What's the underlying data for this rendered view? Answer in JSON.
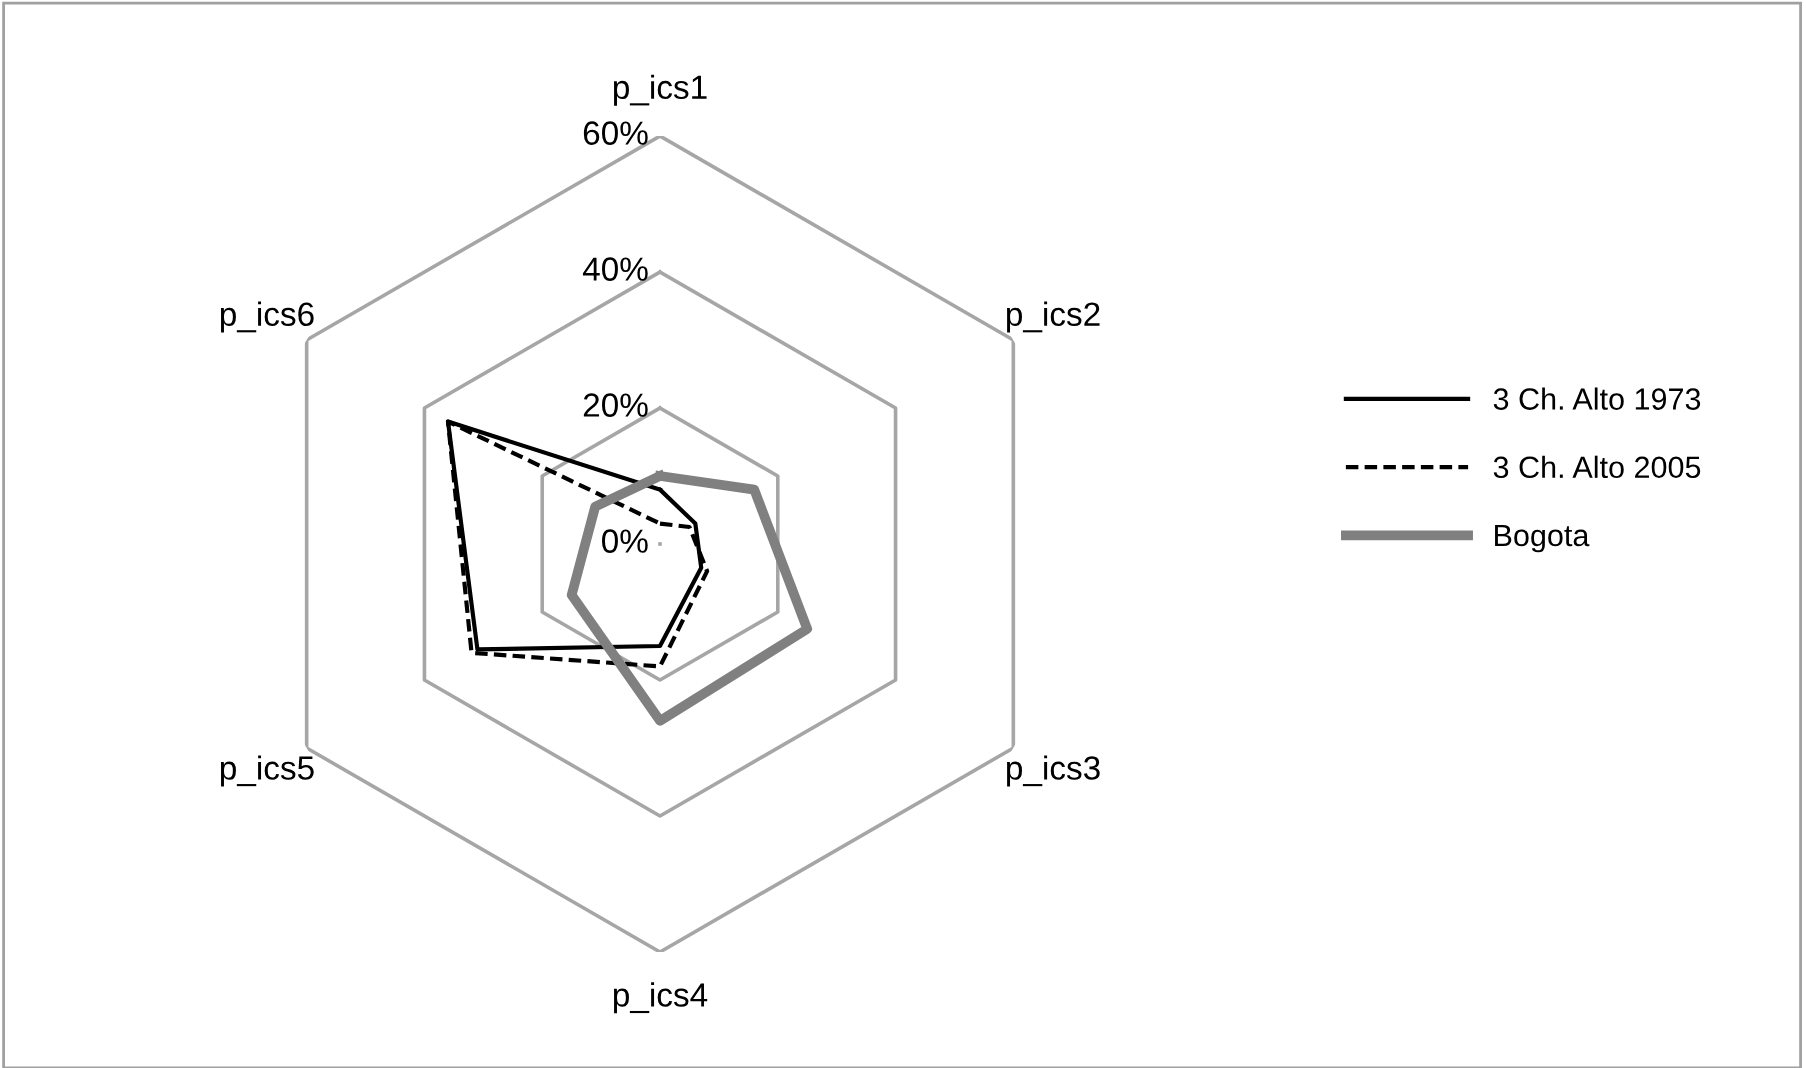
{
  "chart_data": {
    "type": "radar",
    "categories": [
      "p_ics1",
      "p_ics2",
      "p_ics3",
      "p_ics4",
      "p_ics5",
      "p_ics6"
    ],
    "series": [
      {
        "name": "3 Ch. Alto 1973",
        "color": "#000000",
        "line_style": "solid",
        "values": [
          8,
          6,
          7,
          15,
          31,
          36
        ]
      },
      {
        "name": "3 Ch. Alto 2005",
        "color": "#000000",
        "line_style": "dashed",
        "values": [
          3,
          5,
          8,
          18,
          32,
          36
        ]
      },
      {
        "name": "Bogota",
        "color": "#808080",
        "line_style": "solid",
        "values": [
          10,
          16,
          25,
          26,
          15,
          11
        ]
      }
    ],
    "ylim": [
      0,
      60
    ],
    "yticks": [
      {
        "value": 0,
        "label": "0%"
      },
      {
        "value": 20,
        "label": "20%"
      },
      {
        "value": 40,
        "label": "40%"
      },
      {
        "value": 60,
        "label": "60%"
      }
    ],
    "grid": true,
    "legend": "right",
    "marker": "none"
  }
}
